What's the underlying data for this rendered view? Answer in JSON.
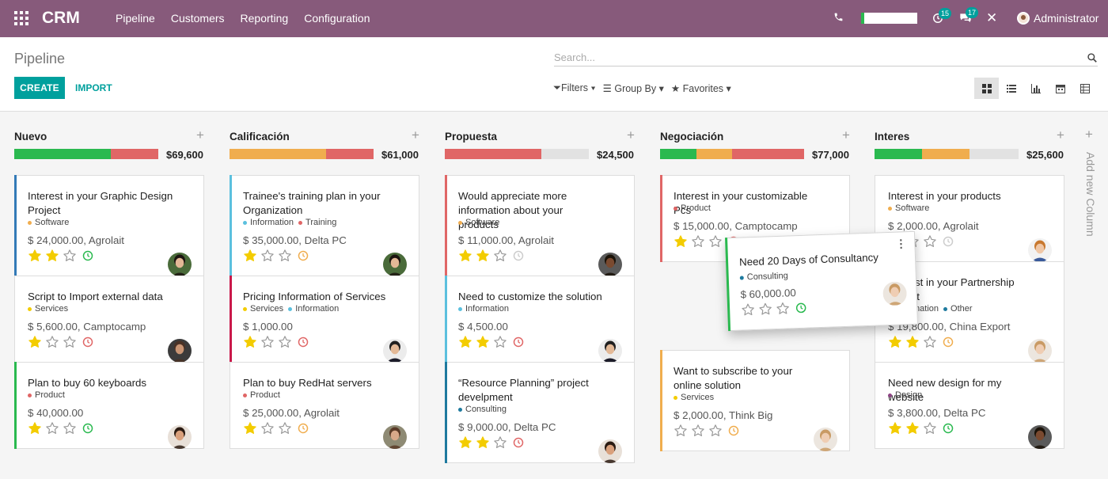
{
  "navbar": {
    "brand": "CRM",
    "menu": [
      "Pipeline",
      "Customers",
      "Reporting",
      "Configuration"
    ],
    "activity_count": "15",
    "messages_count": "17",
    "user": "Administrator",
    "icons": [
      "apps-grid-icon",
      "phone-icon",
      "clock-icon",
      "chat-icon",
      "close-icon"
    ]
  },
  "control": {
    "title": "Pipeline",
    "search_placeholder": "Search...",
    "create": "CREATE",
    "import": "IMPORT",
    "filters": "Filters",
    "group_by": "Group By",
    "favorites": "Favorites",
    "views": [
      "kanban",
      "list",
      "graph",
      "calendar",
      "pivot"
    ]
  },
  "add_column": "Add new Column",
  "colors": {
    "brand": "#875a7b",
    "accent": "#00a09d",
    "green": "#2ab94f",
    "orange": "#f0ad4e",
    "red": "#e06666",
    "grey": "#e2e2e2",
    "star": "#f3cc00"
  },
  "columns": [
    {
      "title": "Nuevo",
      "total": "$69,600",
      "progress": [
        {
          "color": "green",
          "value": 0.67
        },
        {
          "color": "red",
          "value": 0.33
        }
      ],
      "cards": [
        {
          "title": "Interest in your Graphic Design Project",
          "tags": [
            {
              "label": "Software",
              "color": "#f0ad4e"
            }
          ],
          "amount": "$ 24,000.00, Agrolait",
          "stars": 2,
          "clock": "green",
          "accent": "#337ab7",
          "avatar": "woman-1"
        },
        {
          "title": "Script to Import external data",
          "tags": [
            {
              "label": "Services",
              "color": "#f3cc00"
            }
          ],
          "amount": "$ 5,600.00, Camptocamp",
          "stars": 1,
          "clock": "red",
          "accent": "",
          "avatar": "man-1"
        },
        {
          "title": "Plan to buy 60 keyboards",
          "tags": [
            {
              "label": "Product",
              "color": "#e06666"
            }
          ],
          "amount": "$ 40,000.00",
          "stars": 1,
          "clock": "green",
          "accent": "#2ab94f",
          "avatar": "woman-2"
        }
      ]
    },
    {
      "title": "Calificación",
      "total": "$61,000",
      "progress": [
        {
          "color": "orange",
          "value": 0.67
        },
        {
          "color": "red",
          "value": 0.33
        }
      ],
      "cards": [
        {
          "title": "Trainee's training plan in your Organization",
          "tags": [
            {
              "label": "Information",
              "color": "#5bc0de"
            },
            {
              "label": "Training",
              "color": "#e06666"
            }
          ],
          "amount": "$ 35,000.00, Delta PC",
          "stars": 1,
          "clock": "orange",
          "accent": "#5bc0de",
          "avatar": "woman-1"
        },
        {
          "title": "Pricing Information of Services",
          "tags": [
            {
              "label": "Services",
              "color": "#f3cc00"
            },
            {
              "label": "Information",
              "color": "#5bc0de"
            }
          ],
          "amount": "$ 1,000.00",
          "stars": 1,
          "clock": "red",
          "accent": "#c9184a",
          "avatar": "man-2"
        },
        {
          "title": "Plan to buy RedHat servers",
          "tags": [
            {
              "label": "Product",
              "color": "#e06666"
            }
          ],
          "amount": "$ 25,000.00, Agrolait",
          "stars": 1,
          "clock": "orange",
          "accent": "",
          "avatar": "woman-3"
        }
      ]
    },
    {
      "title": "Propuesta",
      "total": "$24,500",
      "progress": [
        {
          "color": "red",
          "value": 0.67
        },
        {
          "color": "grey",
          "value": 0.33
        }
      ],
      "cards": [
        {
          "title": "Would appreciate more information about your products",
          "tags": [
            {
              "label": "Software",
              "color": "#f0ad4e"
            }
          ],
          "amount": "$ 11,000.00, Agrolait",
          "stars": 2,
          "clock": "grey",
          "accent": "#e06666",
          "avatar": "man-3"
        },
        {
          "title": "Need to customize the solution",
          "tags": [
            {
              "label": "Information",
              "color": "#5bc0de"
            }
          ],
          "amount": "$ 4,500.00",
          "stars": 2,
          "clock": "red",
          "accent": "#5bc0de",
          "avatar": "man-2"
        },
        {
          "title": "“Resource Planning” project develpment",
          "tags": [
            {
              "label": "Consulting",
              "color": "#1e7a9e"
            }
          ],
          "amount": "$ 9,000.00, Delta PC",
          "stars": 2,
          "clock": "red",
          "accent": "#1e7a9e",
          "avatar": "woman-2"
        }
      ]
    },
    {
      "title": "Negociación",
      "total": "$77,000",
      "progress": [
        {
          "color": "green",
          "value": 0.25
        },
        {
          "color": "orange",
          "value": 0.25
        },
        {
          "color": "red",
          "value": 0.5
        }
      ],
      "cards": [
        {
          "title": "Interest in your customizable Pcs",
          "tags": [
            {
              "label": "Product",
              "color": "#e06666"
            }
          ],
          "amount": "$ 15,000.00, Camptocamp",
          "stars": 1,
          "clock": "red",
          "accent": "#e06666",
          "avatar": "man-1"
        },
        {
          "title": "Want to subscribe to your online solution",
          "tags": [
            {
              "label": "Services",
              "color": "#f3cc00"
            }
          ],
          "amount": "$ 2,000.00, Think Big",
          "stars": 0,
          "clock": "orange",
          "accent": "#f0ad4e",
          "avatar": "woman-4"
        }
      ]
    },
    {
      "title": "Interes",
      "total": "$25,600",
      "progress": [
        {
          "color": "green",
          "value": 0.33
        },
        {
          "color": "orange",
          "value": 0.33
        },
        {
          "color": "grey",
          "value": 0.34
        }
      ],
      "cards": [
        {
          "title": "Interest in your products",
          "tags": [
            {
              "label": "Software",
              "color": "#f0ad4e"
            }
          ],
          "amount": "$ 2,000.00, Agrolait",
          "stars": 1,
          "clock": "grey",
          "accent": "",
          "avatar": "man-4"
        },
        {
          "title": "Interest in your Partnership project",
          "tags": [
            {
              "label": "Information",
              "color": "#5bc0de"
            },
            {
              "label": "Other",
              "color": "#1e7a9e"
            }
          ],
          "amount": "$ 19,800.00, China Export",
          "stars": 2,
          "clock": "orange",
          "accent": "",
          "avatar": "woman-4"
        },
        {
          "title": "Need new design for my website",
          "tags": [
            {
              "label": "Design",
              "color": "#8e4585"
            }
          ],
          "amount": "$ 3,800.00, Delta PC",
          "stars": 2,
          "clock": "green",
          "accent": "",
          "avatar": "man-3"
        }
      ]
    }
  ],
  "dragged_card": {
    "title": "Need 20 Days of Consultancy",
    "tags": [
      {
        "label": "Consulting",
        "color": "#1e7a9e"
      }
    ],
    "amount": "$ 60,000.00",
    "stars": 0,
    "clock": "green",
    "avatar": "woman-4"
  }
}
